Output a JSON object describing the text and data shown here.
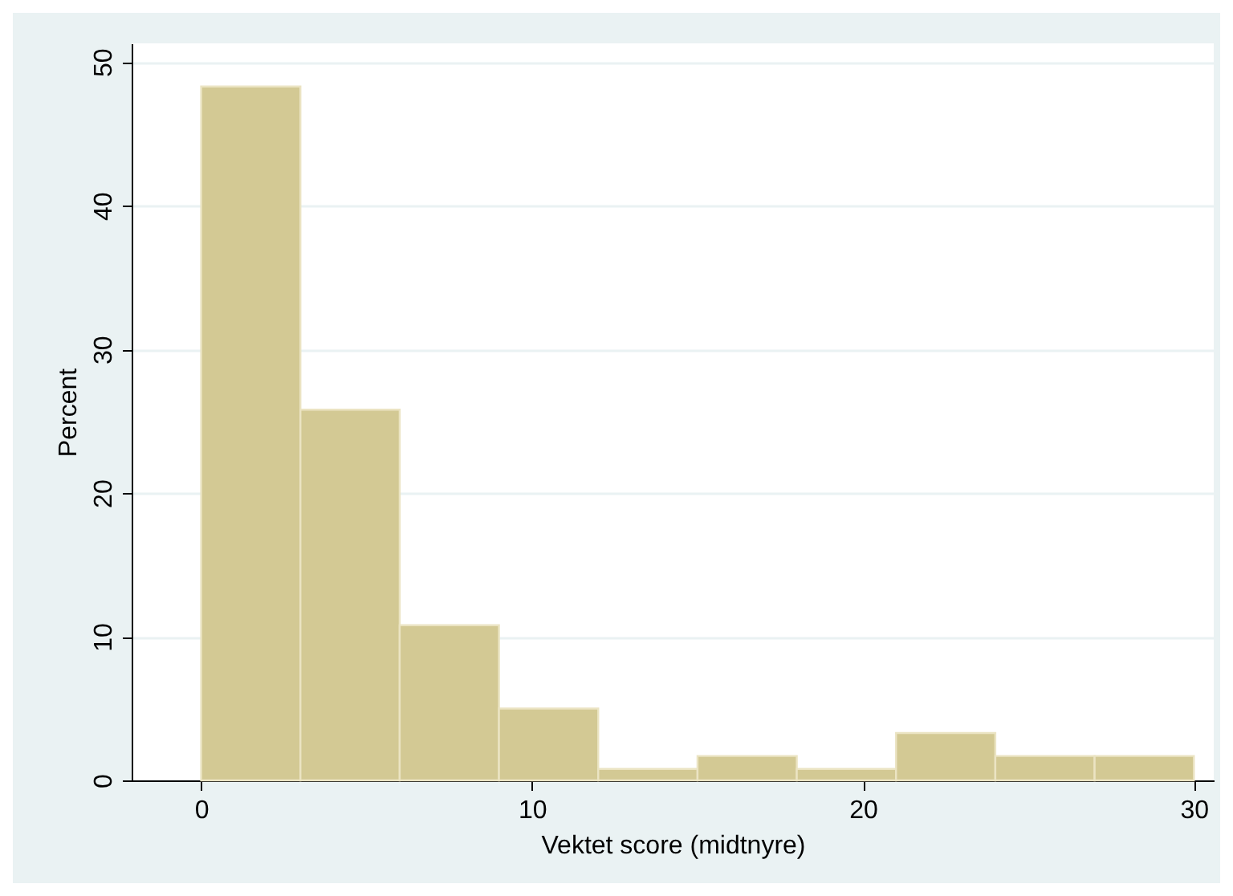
{
  "chart_data": {
    "type": "histogram",
    "xlabel": "Vektet score (midtnyre)",
    "ylabel": "Percent",
    "bins": [
      0,
      3,
      6,
      9,
      12,
      15,
      18,
      21,
      24,
      27,
      30
    ],
    "values": [
      48.3,
      25.8,
      10.8,
      5.0,
      0.8,
      1.7,
      0.8,
      3.3,
      1.7,
      1.7
    ],
    "color": "#d3c994",
    "xlim": [
      -2.1,
      30.6
    ],
    "xticks": [
      0,
      10,
      20,
      30
    ],
    "ylim": [
      0,
      51.3
    ],
    "yticks": [
      0,
      10,
      20,
      30,
      40,
      50
    ],
    "grid": "y"
  }
}
